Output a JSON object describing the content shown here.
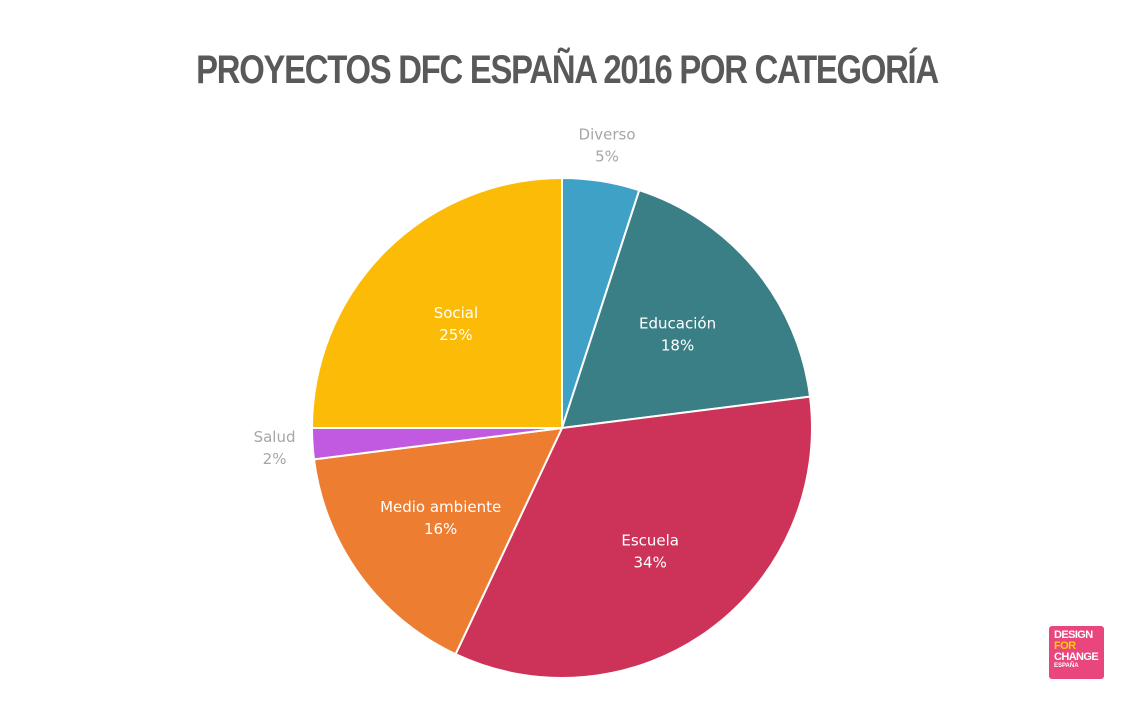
{
  "chart_data": {
    "type": "pie",
    "title": "PROYECTOS DFC ESPAÑA 2016 POR CATEGORÍA",
    "slices": [
      {
        "label": "Diverso",
        "value": 5,
        "display": "5%",
        "color": "#3fa1c6",
        "label_position": "outside"
      },
      {
        "label": "Educación",
        "value": 18,
        "display": "18%",
        "color": "#3a7f85",
        "label_position": "inside"
      },
      {
        "label": "Escuela",
        "value": 34,
        "display": "34%",
        "color": "#cd3359",
        "label_position": "inside"
      },
      {
        "label": "Medio ambiente",
        "value": 16,
        "display": "16%",
        "color": "#ed7d31",
        "label_position": "inside"
      },
      {
        "label": "Salud",
        "value": 2,
        "display": "2%",
        "color": "#c15ae0",
        "label_position": "outside"
      },
      {
        "label": "Social",
        "value": 25,
        "display": "25%",
        "color": "#fcbb06",
        "label_position": "inside"
      }
    ],
    "start": "top (12 o'clock)",
    "direction": "clockwise",
    "legend": "none"
  },
  "logo": {
    "line1": "DESIGN",
    "line2": "FOR",
    "line3": "CHANGE",
    "line4": "ESPAÑA",
    "color": "#e8467c"
  }
}
